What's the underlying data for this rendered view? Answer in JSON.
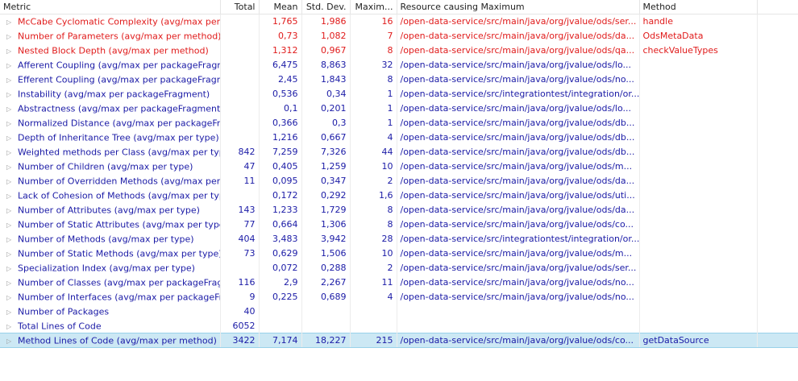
{
  "columns": {
    "metric": "Metric",
    "total": "Total",
    "mean": "Mean",
    "std": "Std. Dev.",
    "max": "Maxim...",
    "resource": "Resource causing Maximum",
    "method": "Method"
  },
  "twisty_icon": "▷",
  "rows": [
    {
      "metric": "McCabe Cyclomatic Complexity (avg/max per",
      "total": "",
      "mean": "1,765",
      "std": "1,986",
      "max": "16",
      "resource": "/open-data-service/src/main/java/org/jvalue/ods/ser...",
      "method": "handle",
      "style": "red"
    },
    {
      "metric": "Number of Parameters (avg/max per method)",
      "total": "",
      "mean": "0,73",
      "std": "1,082",
      "max": "7",
      "resource": "/open-data-service/src/main/java/org/jvalue/ods/da...",
      "method": "OdsMetaData",
      "style": "red"
    },
    {
      "metric": "Nested Block Depth (avg/max per method)",
      "total": "",
      "mean": "1,312",
      "std": "0,967",
      "max": "8",
      "resource": "/open-data-service/src/main/java/org/jvalue/ods/qa...",
      "method": "checkValueTypes",
      "style": "red"
    },
    {
      "metric": "Afferent Coupling (avg/max per packageFragm",
      "total": "",
      "mean": "6,475",
      "std": "8,863",
      "max": "32",
      "resource": "/open-data-service/src/main/java/org/jvalue/ods/lo...",
      "method": "",
      "style": ""
    },
    {
      "metric": "Efferent Coupling (avg/max per packageFragm",
      "total": "",
      "mean": "2,45",
      "std": "1,843",
      "max": "8",
      "resource": "/open-data-service/src/main/java/org/jvalue/ods/no...",
      "method": "",
      "style": ""
    },
    {
      "metric": "Instability (avg/max per packageFragment)",
      "total": "",
      "mean": "0,536",
      "std": "0,34",
      "max": "1",
      "resource": "/open-data-service/src/integrationtest/integration/or...",
      "method": "",
      "style": ""
    },
    {
      "metric": "Abstractness (avg/max per packageFragment)",
      "total": "",
      "mean": "0,1",
      "std": "0,201",
      "max": "1",
      "resource": "/open-data-service/src/main/java/org/jvalue/ods/lo...",
      "method": "",
      "style": ""
    },
    {
      "metric": "Normalized Distance (avg/max per packageFra",
      "total": "",
      "mean": "0,366",
      "std": "0,3",
      "max": "1",
      "resource": "/open-data-service/src/main/java/org/jvalue/ods/db...",
      "method": "",
      "style": ""
    },
    {
      "metric": "Depth of Inheritance Tree (avg/max per type)",
      "total": "",
      "mean": "1,216",
      "std": "0,667",
      "max": "4",
      "resource": "/open-data-service/src/main/java/org/jvalue/ods/db...",
      "method": "",
      "style": ""
    },
    {
      "metric": "Weighted methods per Class (avg/max per typ",
      "total": "842",
      "mean": "7,259",
      "std": "7,326",
      "max": "44",
      "resource": "/open-data-service/src/main/java/org/jvalue/ods/db...",
      "method": "",
      "style": ""
    },
    {
      "metric": "Number of Children (avg/max per type)",
      "total": "47",
      "mean": "0,405",
      "std": "1,259",
      "max": "10",
      "resource": "/open-data-service/src/main/java/org/jvalue/ods/m...",
      "method": "",
      "style": ""
    },
    {
      "metric": "Number of Overridden Methods (avg/max per",
      "total": "11",
      "mean": "0,095",
      "std": "0,347",
      "max": "2",
      "resource": "/open-data-service/src/main/java/org/jvalue/ods/da...",
      "method": "",
      "style": ""
    },
    {
      "metric": "Lack of Cohesion of Methods (avg/max per typ",
      "total": "",
      "mean": "0,172",
      "std": "0,292",
      "max": "1,6",
      "resource": "/open-data-service/src/main/java/org/jvalue/ods/uti...",
      "method": "",
      "style": ""
    },
    {
      "metric": "Number of Attributes (avg/max per type)",
      "total": "143",
      "mean": "1,233",
      "std": "1,729",
      "max": "8",
      "resource": "/open-data-service/src/main/java/org/jvalue/ods/da...",
      "method": "",
      "style": ""
    },
    {
      "metric": "Number of Static Attributes (avg/max per type",
      "total": "77",
      "mean": "0,664",
      "std": "1,306",
      "max": "8",
      "resource": "/open-data-service/src/main/java/org/jvalue/ods/co...",
      "method": "",
      "style": ""
    },
    {
      "metric": "Number of Methods (avg/max per type)",
      "total": "404",
      "mean": "3,483",
      "std": "3,942",
      "max": "28",
      "resource": "/open-data-service/src/integrationtest/integration/or...",
      "method": "",
      "style": ""
    },
    {
      "metric": "Number of Static Methods (avg/max per type)",
      "total": "73",
      "mean": "0,629",
      "std": "1,506",
      "max": "10",
      "resource": "/open-data-service/src/main/java/org/jvalue/ods/m...",
      "method": "",
      "style": ""
    },
    {
      "metric": "Specialization Index (avg/max per type)",
      "total": "",
      "mean": "0,072",
      "std": "0,288",
      "max": "2",
      "resource": "/open-data-service/src/main/java/org/jvalue/ods/ser...",
      "method": "",
      "style": ""
    },
    {
      "metric": "Number of Classes (avg/max per packageFragi",
      "total": "116",
      "mean": "2,9",
      "std": "2,267",
      "max": "11",
      "resource": "/open-data-service/src/main/java/org/jvalue/ods/no...",
      "method": "",
      "style": ""
    },
    {
      "metric": "Number of Interfaces (avg/max per packageFra",
      "total": "9",
      "mean": "0,225",
      "std": "0,689",
      "max": "4",
      "resource": "/open-data-service/src/main/java/org/jvalue/ods/no...",
      "method": "",
      "style": ""
    },
    {
      "metric": "Number of Packages",
      "total": "40",
      "mean": "",
      "std": "",
      "max": "",
      "resource": "",
      "method": "",
      "style": ""
    },
    {
      "metric": "Total Lines of Code",
      "total": "6052",
      "mean": "",
      "std": "",
      "max": "",
      "resource": "",
      "method": "",
      "style": ""
    },
    {
      "metric": "Method Lines of Code (avg/max per method)",
      "total": "3422",
      "mean": "7,174",
      "std": "18,227",
      "max": "215",
      "resource": "/open-data-service/src/main/java/org/jvalue/ods/co...",
      "method": "getDataSource",
      "style": "selected"
    }
  ],
  "colors": {
    "text_normal": "#1a1aa6",
    "text_warning": "#e01b1b",
    "selection": "#cce8f4"
  }
}
